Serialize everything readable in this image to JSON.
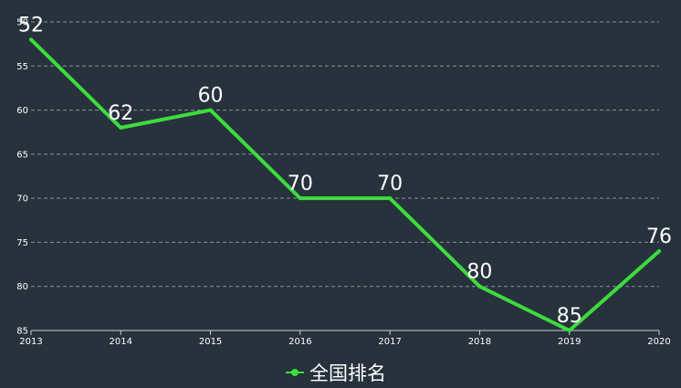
{
  "chart_data": {
    "type": "line",
    "categories": [
      "2013",
      "2014",
      "2015",
      "2016",
      "2017",
      "2018",
      "2019",
      "2020"
    ],
    "series": [
      {
        "name": "全国排名",
        "values": [
          52,
          62,
          60,
          70,
          70,
          80,
          85,
          76
        ],
        "color": "#3ddc3d"
      }
    ],
    "y_axis": {
      "inverse": true,
      "range": [
        50,
        85
      ],
      "ticks": [
        "50",
        "55",
        "60",
        "65",
        "70",
        "75",
        "80",
        "85"
      ]
    },
    "grid": "horizontal dashed",
    "legend_position": "bottom-center",
    "data_labels": true
  },
  "colors": {
    "background": "#27323d",
    "grid": "#8a939c",
    "axis": "#c8cdd2",
    "text": "#ffffff",
    "line": "#3ddc3d"
  }
}
